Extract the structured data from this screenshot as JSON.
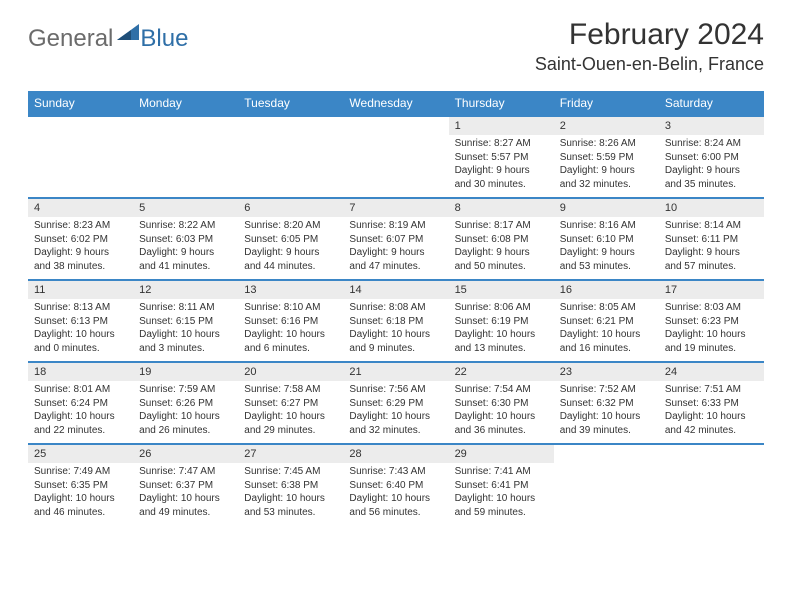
{
  "logo": {
    "general": "General",
    "blue": "Blue"
  },
  "title": "February 2024",
  "location": "Saint-Ouen-en-Belin, France",
  "colors": {
    "header_bg": "#3b86c6",
    "header_text": "#ffffff",
    "daynum_bg": "#ececec",
    "border": "#3b86c6",
    "body_text": "#333333",
    "logo_gray": "#6b6b6b",
    "logo_blue": "#2f6fa7"
  },
  "dayNames": [
    "Sunday",
    "Monday",
    "Tuesday",
    "Wednesday",
    "Thursday",
    "Friday",
    "Saturday"
  ],
  "weeks": [
    [
      null,
      null,
      null,
      null,
      {
        "n": "1",
        "sr": "Sunrise: 8:27 AM",
        "ss": "Sunset: 5:57 PM",
        "d1": "Daylight: 9 hours",
        "d2": "and 30 minutes."
      },
      {
        "n": "2",
        "sr": "Sunrise: 8:26 AM",
        "ss": "Sunset: 5:59 PM",
        "d1": "Daylight: 9 hours",
        "d2": "and 32 minutes."
      },
      {
        "n": "3",
        "sr": "Sunrise: 8:24 AM",
        "ss": "Sunset: 6:00 PM",
        "d1": "Daylight: 9 hours",
        "d2": "and 35 minutes."
      }
    ],
    [
      {
        "n": "4",
        "sr": "Sunrise: 8:23 AM",
        "ss": "Sunset: 6:02 PM",
        "d1": "Daylight: 9 hours",
        "d2": "and 38 minutes."
      },
      {
        "n": "5",
        "sr": "Sunrise: 8:22 AM",
        "ss": "Sunset: 6:03 PM",
        "d1": "Daylight: 9 hours",
        "d2": "and 41 minutes."
      },
      {
        "n": "6",
        "sr": "Sunrise: 8:20 AM",
        "ss": "Sunset: 6:05 PM",
        "d1": "Daylight: 9 hours",
        "d2": "and 44 minutes."
      },
      {
        "n": "7",
        "sr": "Sunrise: 8:19 AM",
        "ss": "Sunset: 6:07 PM",
        "d1": "Daylight: 9 hours",
        "d2": "and 47 minutes."
      },
      {
        "n": "8",
        "sr": "Sunrise: 8:17 AM",
        "ss": "Sunset: 6:08 PM",
        "d1": "Daylight: 9 hours",
        "d2": "and 50 minutes."
      },
      {
        "n": "9",
        "sr": "Sunrise: 8:16 AM",
        "ss": "Sunset: 6:10 PM",
        "d1": "Daylight: 9 hours",
        "d2": "and 53 minutes."
      },
      {
        "n": "10",
        "sr": "Sunrise: 8:14 AM",
        "ss": "Sunset: 6:11 PM",
        "d1": "Daylight: 9 hours",
        "d2": "and 57 minutes."
      }
    ],
    [
      {
        "n": "11",
        "sr": "Sunrise: 8:13 AM",
        "ss": "Sunset: 6:13 PM",
        "d1": "Daylight: 10 hours",
        "d2": "and 0 minutes."
      },
      {
        "n": "12",
        "sr": "Sunrise: 8:11 AM",
        "ss": "Sunset: 6:15 PM",
        "d1": "Daylight: 10 hours",
        "d2": "and 3 minutes."
      },
      {
        "n": "13",
        "sr": "Sunrise: 8:10 AM",
        "ss": "Sunset: 6:16 PM",
        "d1": "Daylight: 10 hours",
        "d2": "and 6 minutes."
      },
      {
        "n": "14",
        "sr": "Sunrise: 8:08 AM",
        "ss": "Sunset: 6:18 PM",
        "d1": "Daylight: 10 hours",
        "d2": "and 9 minutes."
      },
      {
        "n": "15",
        "sr": "Sunrise: 8:06 AM",
        "ss": "Sunset: 6:19 PM",
        "d1": "Daylight: 10 hours",
        "d2": "and 13 minutes."
      },
      {
        "n": "16",
        "sr": "Sunrise: 8:05 AM",
        "ss": "Sunset: 6:21 PM",
        "d1": "Daylight: 10 hours",
        "d2": "and 16 minutes."
      },
      {
        "n": "17",
        "sr": "Sunrise: 8:03 AM",
        "ss": "Sunset: 6:23 PM",
        "d1": "Daylight: 10 hours",
        "d2": "and 19 minutes."
      }
    ],
    [
      {
        "n": "18",
        "sr": "Sunrise: 8:01 AM",
        "ss": "Sunset: 6:24 PM",
        "d1": "Daylight: 10 hours",
        "d2": "and 22 minutes."
      },
      {
        "n": "19",
        "sr": "Sunrise: 7:59 AM",
        "ss": "Sunset: 6:26 PM",
        "d1": "Daylight: 10 hours",
        "d2": "and 26 minutes."
      },
      {
        "n": "20",
        "sr": "Sunrise: 7:58 AM",
        "ss": "Sunset: 6:27 PM",
        "d1": "Daylight: 10 hours",
        "d2": "and 29 minutes."
      },
      {
        "n": "21",
        "sr": "Sunrise: 7:56 AM",
        "ss": "Sunset: 6:29 PM",
        "d1": "Daylight: 10 hours",
        "d2": "and 32 minutes."
      },
      {
        "n": "22",
        "sr": "Sunrise: 7:54 AM",
        "ss": "Sunset: 6:30 PM",
        "d1": "Daylight: 10 hours",
        "d2": "and 36 minutes."
      },
      {
        "n": "23",
        "sr": "Sunrise: 7:52 AM",
        "ss": "Sunset: 6:32 PM",
        "d1": "Daylight: 10 hours",
        "d2": "and 39 minutes."
      },
      {
        "n": "24",
        "sr": "Sunrise: 7:51 AM",
        "ss": "Sunset: 6:33 PM",
        "d1": "Daylight: 10 hours",
        "d2": "and 42 minutes."
      }
    ],
    [
      {
        "n": "25",
        "sr": "Sunrise: 7:49 AM",
        "ss": "Sunset: 6:35 PM",
        "d1": "Daylight: 10 hours",
        "d2": "and 46 minutes."
      },
      {
        "n": "26",
        "sr": "Sunrise: 7:47 AM",
        "ss": "Sunset: 6:37 PM",
        "d1": "Daylight: 10 hours",
        "d2": "and 49 minutes."
      },
      {
        "n": "27",
        "sr": "Sunrise: 7:45 AM",
        "ss": "Sunset: 6:38 PM",
        "d1": "Daylight: 10 hours",
        "d2": "and 53 minutes."
      },
      {
        "n": "28",
        "sr": "Sunrise: 7:43 AM",
        "ss": "Sunset: 6:40 PM",
        "d1": "Daylight: 10 hours",
        "d2": "and 56 minutes."
      },
      {
        "n": "29",
        "sr": "Sunrise: 7:41 AM",
        "ss": "Sunset: 6:41 PM",
        "d1": "Daylight: 10 hours",
        "d2": "and 59 minutes."
      },
      null,
      null
    ]
  ]
}
